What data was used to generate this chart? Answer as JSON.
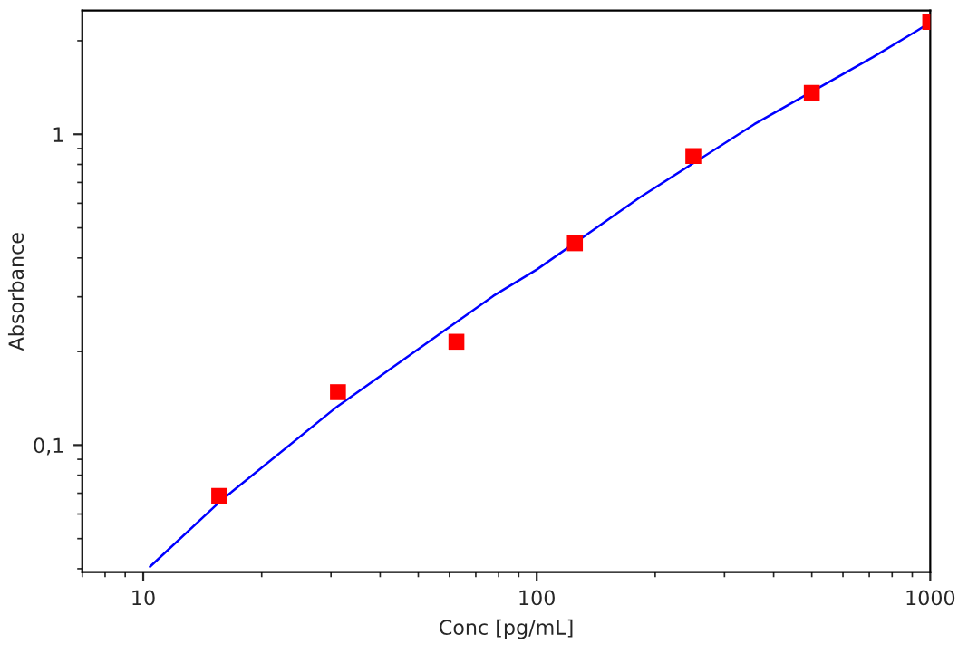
{
  "chart_data": {
    "type": "scatter",
    "xlabel": "Conc [pg/mL]",
    "ylabel": "Absorbance",
    "log": "xy",
    "grid": false,
    "xlim": [
      7,
      1000
    ],
    "xticks": [
      10,
      100,
      1000
    ],
    "ylim": [
      0.039,
      2.5
    ],
    "yticks": [
      {
        "value": 0.1,
        "label": "0,1"
      },
      1
    ],
    "series": [
      {
        "color": "#ff0000",
        "marker": "square",
        "x": [
          15.6,
          31.25,
          62.5,
          125,
          250,
          500,
          1000
        ],
        "values": [
          0.0686,
          0.148,
          0.215,
          0.446,
          0.851,
          1.36,
          2.3
        ]
      },
      {
        "type": "line",
        "color": "#0000ff",
        "marker": "none",
        "line_style": "solid",
        "x": [
          10.4,
          15.7,
          31.1,
          77.6,
          100,
          182,
          357,
          715,
          929,
          989
        ],
        "values": [
          0.0406,
          0.066,
          0.133,
          0.302,
          0.367,
          0.624,
          1.077,
          1.77,
          2.16,
          2.27
        ]
      }
    ]
  }
}
